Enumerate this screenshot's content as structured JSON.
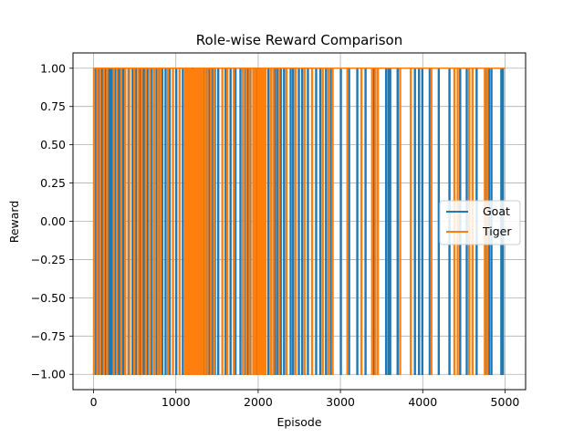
{
  "chart_data": {
    "type": "line",
    "title": "Role-wise Reward Comparison",
    "xlabel": "Episode",
    "ylabel": "Reward",
    "xlim": [
      -250,
      5250
    ],
    "ylim": [
      -1.1,
      1.1
    ],
    "xticks": [
      0,
      1000,
      2000,
      3000,
      4000,
      5000
    ],
    "xtick_labels": [
      "0",
      "1000",
      "2000",
      "3000",
      "4000",
      "5000"
    ],
    "yticks": [
      -1.0,
      -0.75,
      -0.5,
      -0.25,
      0.0,
      0.25,
      0.5,
      0.75,
      1.0
    ],
    "ytick_labels": [
      "−1.00",
      "−0.75",
      "−0.50",
      "−0.25",
      "0.00",
      "0.25",
      "0.50",
      "0.75",
      "1.00"
    ],
    "grid": true,
    "legend_position": "center-right",
    "series": [
      {
        "name": "Goat",
        "color": "#1f77b4",
        "spikes": [
          10,
          25,
          60,
          85,
          100,
          145,
          170,
          185,
          200,
          215,
          230,
          255,
          270,
          290,
          305,
          320,
          345,
          360,
          420,
          470,
          510,
          560,
          590,
          610,
          650,
          700,
          760,
          790,
          830,
          870,
          920,
          1000,
          1080,
          1130,
          1145,
          1155,
          1170,
          1185,
          1205,
          1220,
          1235,
          1255,
          1270,
          1290,
          1310,
          1330,
          1360,
          1390,
          1410,
          1440,
          1470,
          1510,
          1600,
          1660,
          1720,
          1780,
          1840,
          1870,
          1900,
          1950,
          1980,
          2010,
          2040,
          2075,
          2120,
          2200,
          2230,
          2270,
          2310,
          2390,
          2420,
          2490,
          2530,
          2600,
          2700,
          2750,
          2820,
          2880,
          3000,
          3100,
          3200,
          3300,
          3400,
          3550,
          3580,
          3600,
          3690,
          3900,
          3950,
          3990,
          4080,
          4190,
          4320,
          4450,
          4530,
          4650,
          4770,
          4800,
          4830,
          4950,
          4970
        ]
      },
      {
        "name": "Tiger",
        "color": "#ff7f0e",
        "spikes": [
          0,
          40,
          75,
          120,
          160,
          240,
          280,
          330,
          380,
          430,
          490,
          540,
          580,
          630,
          680,
          730,
          780,
          810,
          900,
          960,
          1040,
          1110,
          1125,
          1140,
          1160,
          1175,
          1190,
          1200,
          1210,
          1230,
          1245,
          1260,
          1275,
          1300,
          1320,
          1350,
          1380,
          1420,
          1460,
          1560,
          1620,
          1700,
          1810,
          1850,
          1890,
          1935,
          1960,
          1990,
          2000,
          2015,
          2030,
          2050,
          2065,
          2085,
          2150,
          2180,
          2250,
          2340,
          2450,
          2560,
          2650,
          2780,
          2850,
          2900,
          3080,
          3250,
          3380,
          3420,
          3450,
          3720,
          3850,
          4100,
          4380,
          4420,
          4560,
          4600,
          4750,
          4780
        ]
      }
    ]
  }
}
